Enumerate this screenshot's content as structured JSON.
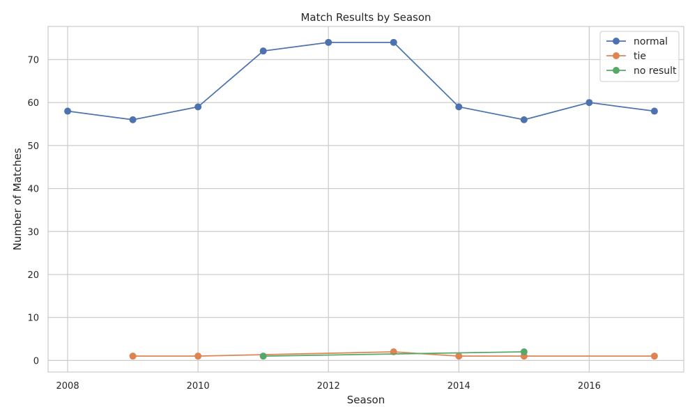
{
  "chart_data": {
    "type": "line",
    "title": "Match Results by Season",
    "xlabel": "Season",
    "ylabel": "Number of Matches",
    "xlim": [
      2007.7,
      2017.45
    ],
    "ylim": [
      -2.7,
      77.7
    ],
    "xticks": [
      2008,
      2010,
      2012,
      2014,
      2016
    ],
    "yticks": [
      0,
      10,
      20,
      30,
      40,
      50,
      60,
      70
    ],
    "grid": true,
    "legend_position": "top-right",
    "series": [
      {
        "name": "normal",
        "color": "#4c72b0",
        "points": [
          [
            2008,
            58
          ],
          [
            2009,
            56
          ],
          [
            2010,
            59
          ],
          [
            2011,
            72
          ],
          [
            2012,
            74
          ],
          [
            2013,
            74
          ],
          [
            2014,
            59
          ],
          [
            2015,
            56
          ],
          [
            2016,
            60
          ],
          [
            2017,
            58
          ]
        ]
      },
      {
        "name": "tie",
        "color": "#dd8452",
        "points": [
          [
            2009,
            1
          ],
          [
            2010,
            1
          ],
          [
            2013,
            2
          ],
          [
            2014,
            1
          ],
          [
            2015,
            1
          ],
          [
            2017,
            1
          ]
        ]
      },
      {
        "name": "no result",
        "color": "#55a868",
        "points": [
          [
            2011,
            1
          ],
          [
            2015,
            2
          ]
        ]
      }
    ]
  }
}
